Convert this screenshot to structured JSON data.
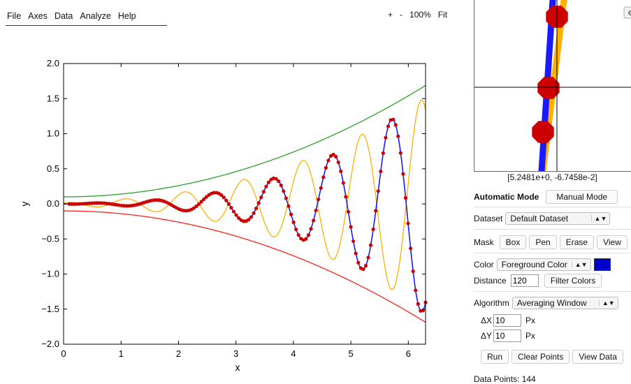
{
  "menu": [
    "File",
    "Axes",
    "Data",
    "Analyze",
    "Help"
  ],
  "zoom": {
    "plus": "+",
    "minus": "-",
    "level": "100%",
    "fit": "Fit"
  },
  "chart_data": {
    "type": "line",
    "xlabel": "x",
    "ylabel": "y",
    "xlim": [
      0,
      6.3
    ],
    "ylim": [
      -2.0,
      2.0
    ],
    "xticks": [
      "0",
      "1",
      "2",
      "3",
      "4",
      "5",
      "6"
    ],
    "yticks": [
      "2.0",
      "1.5",
      "1.0",
      "0.5",
      "0.0",
      "−0.5",
      "−1.0",
      "−1.5",
      "−2.0"
    ],
    "grid": false,
    "series": [
      {
        "curve": "upper envelope",
        "color": "#2ca02c",
        "formula": "0.1 + 0.04*x^2",
        "x": [
          0,
          6.3
        ],
        "y_at_ends": [
          0.1,
          1.67
        ]
      },
      {
        "curve": "lower envelope",
        "color": "#ff2020",
        "formula": "-(0.1 + 0.04*x^2)",
        "x": [
          0,
          6.3
        ],
        "y_at_ends": [
          -0.1,
          -1.67
        ]
      },
      {
        "curve": "phase-shifted oscillation",
        "color": "#ffb000",
        "peaks_visible": [
          0.05,
          0.25,
          0.42,
          0.65,
          0.9,
          1.2,
          1.48
        ],
        "troughs_visible": [
          -0.05,
          -0.17,
          -0.33,
          -0.55,
          -0.83,
          -1.1,
          -1.3
        ]
      },
      {
        "curve": "oscillation",
        "color": "#1a1aff",
        "peaks": [
          0.02,
          0.15,
          0.36,
          0.62,
          0.92,
          1.27
        ],
        "troughs": [
          -0.07,
          -0.25,
          -0.48,
          -0.77,
          -1.1,
          -1.45
        ]
      },
      {
        "curve": "digitized points",
        "color": "#cc0000",
        "count": 144,
        "x_range": [
          0.1,
          6.3
        ]
      }
    ]
  },
  "panel": {
    "coord": "[5.2481e+0, -6.7458e-2]",
    "automatic_mode": "Automatic Mode",
    "manual_mode": "Manual Mode",
    "dataset_label": "Dataset",
    "dataset_value": "Default Dataset",
    "mask_label": "Mask",
    "mask_buttons": [
      "Box",
      "Pen",
      "Erase",
      "View"
    ],
    "color_label": "Color",
    "color_value": "Foreground Color",
    "color_swatch": "#0000cc",
    "distance_label": "Distance",
    "distance_value": "120",
    "filter_colors": "Filter Colors",
    "algorithm_label": "Algorithm",
    "algorithm_value": "Averaging Window",
    "dx_label": "ΔX",
    "dx_value": "10",
    "dy_label": "ΔY",
    "dy_value": "10",
    "px_unit": "Px",
    "run": "Run",
    "clear_points": "Clear Points",
    "view_data": "View Data",
    "data_points": "Data Points: 144"
  }
}
